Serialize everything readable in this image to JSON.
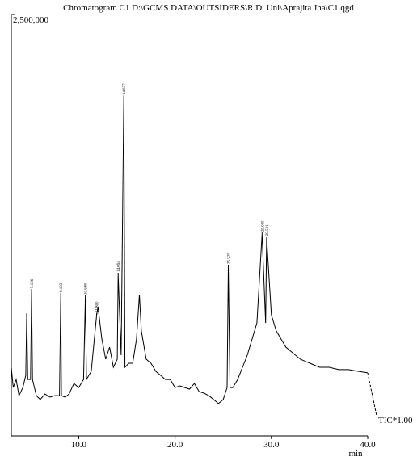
{
  "chart_data": {
    "type": "line",
    "title": "Chromatogram C1 D:\\GCMS DATA\\OUTSIDERS\\R.D. Uni\\Aprajita Jha\\C1.qgd",
    "x_label": "min",
    "trace_label": "TIC*1.00",
    "xlim": [
      3,
      40
    ],
    "xticks": [
      {
        "value": 10,
        "label": "10.0"
      },
      {
        "value": 20,
        "label": "20.0"
      },
      {
        "value": 30,
        "label": "30.0"
      },
      {
        "value": 40,
        "label": "40.0"
      }
    ],
    "ylim": [
      0,
      2500000
    ],
    "yticks": [
      {
        "value": 2500000,
        "label": "2,500,000"
      }
    ],
    "color": "#000000",
    "x": [
      3.0,
      3.2,
      3.5,
      3.8,
      4.2,
      4.5,
      4.6,
      4.7,
      5.0,
      5.106,
      5.2,
      5.6,
      6.0,
      6.5,
      7.0,
      7.5,
      8.0,
      8.133,
      8.2,
      8.6,
      9.0,
      9.5,
      10.0,
      10.5,
      10.688,
      10.8,
      11.3,
      11.86,
      12.0,
      12.4,
      12.8,
      13.2,
      13.6,
      14.0,
      14.094,
      14.4,
      14.677,
      14.8,
      15.2,
      15.6,
      16.0,
      16.3,
      16.5,
      17.0,
      17.5,
      18.0,
      18.5,
      19.0,
      19.5,
      20.0,
      20.5,
      21.0,
      21.5,
      22.0,
      22.5,
      23.0,
      23.5,
      24.0,
      24.5,
      25.0,
      25.4,
      25.525,
      25.7,
      26.0,
      26.5,
      27.0,
      27.5,
      28.0,
      28.5,
      29.035,
      29.4,
      29.501,
      30.0,
      30.5,
      31.0,
      31.5,
      32.0,
      33.0,
      34.0,
      35.0,
      36.0,
      37.0,
      38.0,
      39.0,
      40.0
    ],
    "values": [
      407000,
      287000,
      335000,
      239000,
      287000,
      359000,
      728000,
      335000,
      335000,
      862000,
      335000,
      239000,
      216000,
      249000,
      230000,
      239000,
      239000,
      838000,
      239000,
      230000,
      249000,
      311000,
      287000,
      335000,
      824000,
      335000,
      383000,
      718000,
      766000,
      575000,
      455000,
      527000,
      407000,
      455000,
      958000,
      479000,
      2011000,
      407000,
      431000,
      431000,
      575000,
      838000,
      623000,
      455000,
      431000,
      383000,
      359000,
      335000,
      335000,
      287000,
      297000,
      287000,
      278000,
      311000,
      263000,
      254000,
      239000,
      216000,
      192000,
      216000,
      287000,
      1006000,
      287000,
      287000,
      335000,
      407000,
      479000,
      575000,
      670000,
      1197000,
      670000,
      1173000,
      718000,
      623000,
      575000,
      527000,
      503000,
      455000,
      431000,
      407000,
      407000,
      393000,
      393000,
      383000,
      374000
    ],
    "annotations": [
      {
        "label": "5.106",
        "x": 5.106,
        "y": 862000
      },
      {
        "label": "8.133",
        "x": 8.133,
        "y": 838000
      },
      {
        "label": "10.688",
        "x": 10.688,
        "y": 824000
      },
      {
        "label": "11.860",
        "x": 11.86,
        "y": 718000
      },
      {
        "label": "14.094",
        "x": 14.094,
        "y": 958000
      },
      {
        "label": "14.677",
        "x": 14.677,
        "y": 2011000
      },
      {
        "label": "25.525",
        "x": 25.525,
        "y": 1006000
      },
      {
        "label": "29.035",
        "x": 29.035,
        "y": 1197000
      },
      {
        "label": "29.501",
        "x": 29.501,
        "y": 1173000
      }
    ]
  }
}
